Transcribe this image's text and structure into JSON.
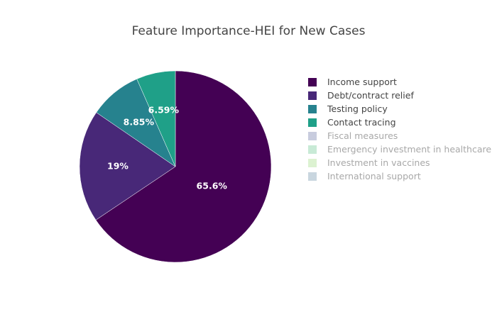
{
  "chart_data": {
    "type": "pie",
    "title": "Feature Importance-HEI for New Cases",
    "legend_position": "right",
    "slices": [
      {
        "label": "Income support",
        "value": 65.6,
        "display": "65.6%",
        "color": "#440154",
        "visible": true
      },
      {
        "label": "Debt/contract relief",
        "value": 19,
        "display": "19%",
        "color": "#482878",
        "visible": true
      },
      {
        "label": "Testing policy",
        "value": 8.85,
        "display": "8.85%",
        "color": "#26828e",
        "visible": true
      },
      {
        "label": "Contact tracing",
        "value": 6.59,
        "display": "6.59%",
        "color": "#1fa088",
        "visible": true
      },
      {
        "label": "Fiscal measures",
        "color": "#9aa3c3",
        "visible": false
      },
      {
        "label": "Emergency investment in healthcare",
        "color": "#9ad9b4",
        "visible": false
      },
      {
        "label": "Investment in vaccines",
        "color": "#bfe8ac",
        "visible": false
      },
      {
        "label": "International support",
        "color": "#9db4c5",
        "visible": false
      }
    ]
  }
}
